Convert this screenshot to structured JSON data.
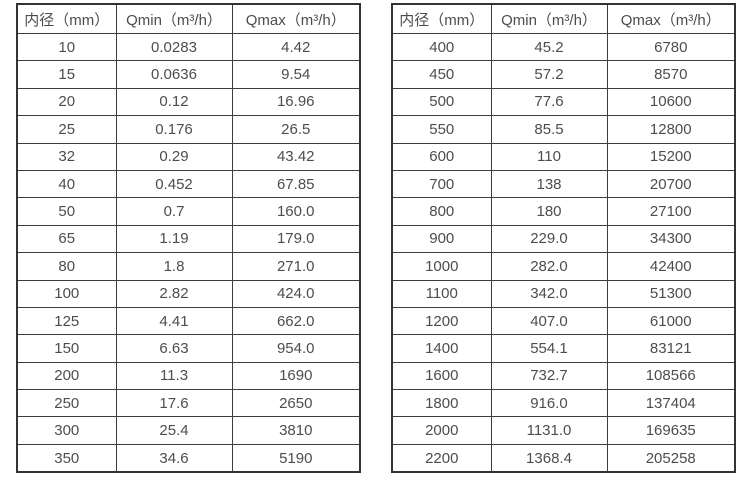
{
  "colors": {
    "text": "#4d4d4d",
    "border_outer": "#333333",
    "border_inner": "#3d3d3d",
    "background": "#ffffff"
  },
  "chart_data": [
    {
      "type": "table",
      "title": "",
      "headers": [
        "内径（mm）",
        "Qmin（m³/h）",
        "Qmax（m³/h）"
      ],
      "rows": [
        [
          "10",
          "0.0283",
          "4.42"
        ],
        [
          "15",
          "0.0636",
          "9.54"
        ],
        [
          "20",
          "0.12",
          "16.96"
        ],
        [
          "25",
          "0.176",
          "26.5"
        ],
        [
          "32",
          "0.29",
          "43.42"
        ],
        [
          "40",
          "0.452",
          "67.85"
        ],
        [
          "50",
          "0.7",
          "160.0"
        ],
        [
          "65",
          "1.19",
          "179.0"
        ],
        [
          "80",
          "1.8",
          "271.0"
        ],
        [
          "100",
          "2.82",
          "424.0"
        ],
        [
          "125",
          "4.41",
          "662.0"
        ],
        [
          "150",
          "6.63",
          "954.0"
        ],
        [
          "200",
          "11.3",
          "1690"
        ],
        [
          "250",
          "17.6",
          "2650"
        ],
        [
          "300",
          "25.4",
          "3810"
        ],
        [
          "350",
          "34.6",
          "5190"
        ]
      ]
    },
    {
      "type": "table",
      "title": "",
      "headers": [
        "内径（mm）",
        "Qmin（m³/h）",
        "Qmax（m³/h）"
      ],
      "rows": [
        [
          "400",
          "45.2",
          "6780"
        ],
        [
          "450",
          "57.2",
          "8570"
        ],
        [
          "500",
          "77.6",
          "10600"
        ],
        [
          "550",
          "85.5",
          "12800"
        ],
        [
          "600",
          "110",
          "15200"
        ],
        [
          "700",
          "138",
          "20700"
        ],
        [
          "800",
          "180",
          "27100"
        ],
        [
          "900",
          "229.0",
          "34300"
        ],
        [
          "1000",
          "282.0",
          "42400"
        ],
        [
          "1100",
          "342.0",
          "51300"
        ],
        [
          "1200",
          "407.0",
          "61000"
        ],
        [
          "1400",
          "554.1",
          "83121"
        ],
        [
          "1600",
          "732.7",
          "108566"
        ],
        [
          "1800",
          "916.0",
          "137404"
        ],
        [
          "2000",
          "1131.0",
          "169635"
        ],
        [
          "2200",
          "1368.4",
          "205258"
        ]
      ]
    }
  ]
}
